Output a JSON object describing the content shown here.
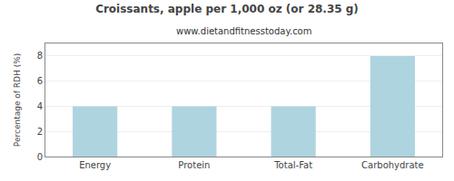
{
  "chart_data": {
    "type": "bar",
    "title": "Croissants, apple per 1,000 oz (or 28.35 g)",
    "subtitle": "www.dietandfitnesstoday.com",
    "categories": [
      "Energy",
      "Protein",
      "Total-Fat",
      "Carbohydrate"
    ],
    "values": [
      4.0,
      4.0,
      4.0,
      8.0
    ],
    "color": "#aed4e0",
    "ylabel": "Percentage of RDH (%)",
    "ylim": [
      0,
      9
    ],
    "yticks": [
      0,
      2,
      4,
      6,
      8
    ],
    "grid": true
  }
}
